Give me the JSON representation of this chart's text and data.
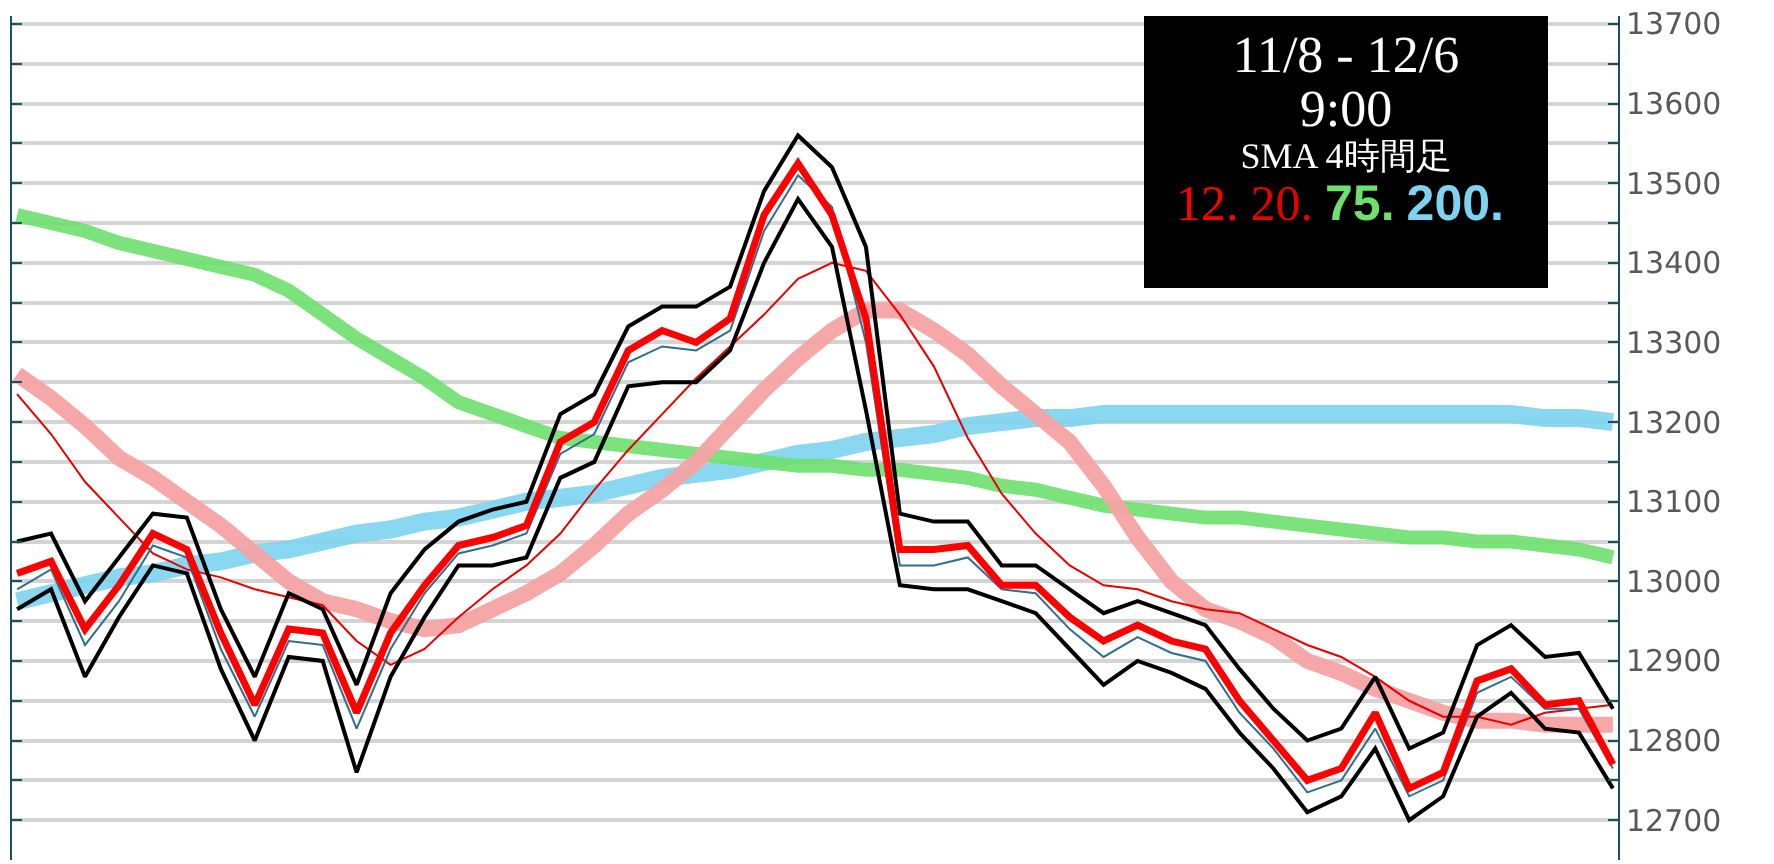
{
  "chart_data": {
    "type": "line",
    "annotations": [
      "11/8 - 12/6",
      "9:00",
      "SMA 4時間足"
    ],
    "categories": [
      null,
      null,
      null,
      null,
      null,
      null,
      null,
      null,
      null,
      null,
      null,
      null,
      null,
      null,
      null,
      null,
      null,
      null,
      null,
      null,
      null,
      null,
      null,
      null,
      null,
      null,
      null,
      null,
      null,
      null,
      null,
      null,
      null,
      null,
      null,
      null,
      null,
      null,
      null,
      null,
      null,
      null,
      null,
      null,
      null,
      null,
      null,
      null
    ],
    "series": [
      {
        "name": "200.",
        "color": "#7dd3f0",
        "values": [
          12975,
          12985,
          12995,
          13005,
          13010,
          13020,
          13025,
          13035,
          13040,
          13050,
          13060,
          13065,
          13075,
          13080,
          13090,
          13100,
          13105,
          13110,
          13120,
          13130,
          13135,
          13140,
          13150,
          13160,
          13165,
          13175,
          13180,
          13185,
          13195,
          13200,
          13205,
          13205,
          13210,
          13210,
          13210,
          13210,
          13210,
          13210,
          13210,
          13210,
          13210,
          13210,
          13210,
          13210,
          13210,
          13205,
          13205,
          13200
        ]
      },
      {
        "name": "75.",
        "color": "#6ee06e",
        "values": [
          13460,
          13450,
          13440,
          13425,
          13415,
          13405,
          13395,
          13385,
          13365,
          13335,
          13305,
          13280,
          13255,
          13225,
          13210,
          13195,
          13180,
          13175,
          13170,
          13165,
          13160,
          13155,
          13150,
          13145,
          13145,
          13140,
          13140,
          13135,
          13130,
          13120,
          13115,
          13105,
          13095,
          13090,
          13085,
          13080,
          13080,
          13075,
          13070,
          13065,
          13060,
          13055,
          13055,
          13050,
          13050,
          13045,
          13040,
          13030
        ]
      },
      {
        "color": "#f5a3a3",
        "values": [
          13260,
          13230,
          13195,
          13155,
          13130,
          13100,
          13070,
          13035,
          13000,
          12975,
          12965,
          12950,
          12940,
          12945,
          12965,
          12985,
          13010,
          13045,
          13085,
          13115,
          13150,
          13195,
          13240,
          13280,
          13315,
          13340,
          13340,
          13315,
          13285,
          13245,
          13210,
          13175,
          13120,
          13055,
          13000,
          12965,
          12950,
          12930,
          12900,
          12885,
          12865,
          12850,
          12835,
          12825,
          12825,
          12820,
          12820,
          12820
        ]
      },
      {
        "name": "20.",
        "color": "#e60000",
        "values": [
          13235,
          13185,
          13125,
          13080,
          13035,
          13015,
          13005,
          12990,
          12980,
          12970,
          12925,
          12895,
          12915,
          12955,
          12990,
          13020,
          13060,
          13115,
          13165,
          13210,
          13255,
          13295,
          13335,
          13380,
          13400,
          13390,
          13335,
          13270,
          13180,
          13110,
          13060,
          13020,
          12995,
          12990,
          12975,
          12965,
          12960,
          12940,
          12920,
          12905,
          12880,
          12850,
          12830,
          12830,
          12820,
          12835,
          12840,
          12845
        ]
      },
      {
        "color": "#000000",
        "values": [
          13050,
          13060,
          12975,
          13030,
          13085,
          13080,
          12965,
          12880,
          12985,
          12965,
          12870,
          12985,
          13040,
          13075,
          13090,
          13100,
          13210,
          13235,
          13320,
          13345,
          13345,
          13370,
          13490,
          13560,
          13520,
          13420,
          13085,
          13075,
          13075,
          13020,
          13020,
          12990,
          12960,
          12975,
          12960,
          12945,
          12890,
          12840,
          12800,
          12815,
          12880,
          12790,
          12810,
          12920,
          12945,
          12905,
          12910,
          12840
        ]
      },
      {
        "color": "#000000",
        "values": [
          12965,
          12990,
          12880,
          12955,
          13020,
          13010,
          12890,
          12800,
          12905,
          12900,
          12760,
          12880,
          12955,
          13020,
          13020,
          13030,
          13130,
          13150,
          13245,
          13250,
          13250,
          13290,
          13400,
          13480,
          13420,
          13215,
          12995,
          12990,
          12990,
          12975,
          12960,
          12915,
          12870,
          12900,
          12885,
          12865,
          12810,
          12765,
          12710,
          12730,
          12790,
          12700,
          12730,
          12830,
          12860,
          12815,
          12810,
          12740
        ]
      },
      {
        "color": "#2f6e8e",
        "values": [
          12990,
          13015,
          12920,
          12975,
          13045,
          13030,
          12915,
          12830,
          12925,
          12920,
          12815,
          12915,
          12985,
          13035,
          13045,
          13060,
          13160,
          13185,
          13275,
          13295,
          13290,
          13315,
          13440,
          13510,
          13470,
          13300,
          13020,
          13020,
          13030,
          12990,
          12985,
          12940,
          12905,
          12930,
          12910,
          12900,
          12835,
          12790,
          12735,
          12750,
          12815,
          12730,
          12750,
          12860,
          12880,
          12840,
          12840,
          12765
        ]
      },
      {
        "name": "12.",
        "color": "#ff0000",
        "values": [
          13010,
          13025,
          12940,
          12995,
          13060,
          13040,
          12935,
          12845,
          12940,
          12935,
          12835,
          12935,
          12995,
          13045,
          13055,
          13070,
          13175,
          13200,
          13290,
          13315,
          13300,
          13330,
          13460,
          13525,
          13460,
          13330,
          13040,
          13040,
          13045,
          12995,
          12995,
          12955,
          12925,
          12945,
          12925,
          12915,
          12850,
          12800,
          12750,
          12765,
          12835,
          12740,
          12760,
          12875,
          12890,
          12845,
          12850,
          12770
        ]
      }
    ],
    "ylim": [
      12650,
      13710
    ],
    "yticks": [
      12700,
      {
        "value": 12750,
        "label": null
      },
      12800,
      {
        "value": 12850,
        "label": null
      },
      12900,
      {
        "value": 12950,
        "label": null
      },
      13000,
      {
        "value": 13050,
        "label": null
      },
      13100,
      {
        "value": 13150,
        "label": null
      },
      13200,
      {
        "value": 13250,
        "label": null
      },
      13300,
      {
        "value": 13350,
        "label": null
      },
      13400,
      {
        "value": 13450,
        "label": null
      },
      13500,
      {
        "value": 13550,
        "label": null
      },
      13600,
      {
        "value": 13650,
        "label": null
      },
      13700
    ],
    "grid": "y",
    "legend": "top right",
    "marker": "none",
    "line_style": "solid",
    "tick_labels": "y"
  }
}
